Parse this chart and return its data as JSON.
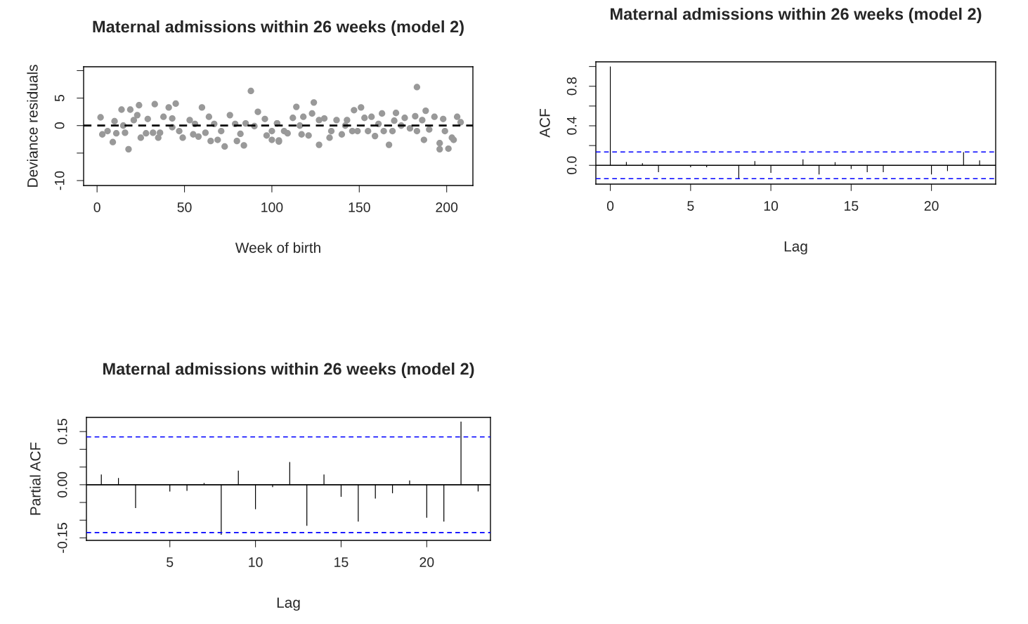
{
  "chart_data": [
    {
      "type": "scatter",
      "title": "Maternal admissions within 26 weeks (model 2)",
      "xlabel": "Week of birth",
      "ylabel": "Deviance residuals",
      "xlim": [
        -7.7,
        215
      ],
      "ylim": [
        -10.9,
        10.7
      ],
      "xticks": [
        0,
        50,
        100,
        150,
        200
      ],
      "yticks": [
        {
          "value": -10,
          "label": "-10"
        },
        {
          "value": -5,
          "label": null
        },
        0,
        5,
        {
          "value": 10,
          "label": null
        }
      ],
      "grid": false,
      "marker": "circle",
      "series": [
        {
          "color": "#999999",
          "x": [
            2,
            3,
            6,
            9,
            10,
            11,
            14,
            15,
            16,
            18,
            19,
            21,
            23,
            24,
            25,
            28,
            29,
            32,
            33,
            35,
            36,
            38,
            41,
            43,
            43,
            45,
            47,
            49,
            53,
            55,
            56,
            58,
            60,
            62,
            64,
            65,
            67,
            69,
            71,
            73,
            76,
            79,
            80,
            82,
            84,
            85,
            88,
            90,
            92,
            96,
            97,
            100,
            100,
            103,
            104,
            103,
            104,
            107,
            109,
            112,
            114,
            116,
            117,
            118,
            121,
            123,
            124,
            127,
            127,
            130,
            133,
            134,
            137,
            140,
            142,
            143,
            146,
            147,
            149,
            151,
            153,
            155,
            157,
            159,
            161,
            163,
            164,
            167,
            169,
            170,
            171,
            174,
            176,
            179,
            182,
            183,
            183,
            186,
            187,
            188,
            190,
            193,
            196,
            196,
            198,
            199,
            201,
            203,
            204,
            206,
            208
          ],
          "values": [
            1.5,
            -1.6,
            -1.0,
            -3.0,
            0.8,
            -1.4,
            2.9,
            0.0,
            -1.3,
            -4.3,
            2.9,
            1.0,
            1.9,
            3.7,
            -2.2,
            -1.4,
            1.2,
            -1.3,
            3.9,
            -2.2,
            -1.3,
            1.6,
            3.3,
            1.3,
            -0.3,
            4.0,
            -1.0,
            -2.2,
            1.0,
            -1.6,
            0.3,
            -2.0,
            3.3,
            -1.3,
            1.6,
            -2.8,
            0.3,
            -2.6,
            -1.0,
            -3.8,
            1.9,
            0.3,
            -2.8,
            -1.5,
            -3.6,
            0.4,
            6.3,
            -0.1,
            2.5,
            1.2,
            -1.8,
            -1.0,
            -2.6,
            0.4,
            -2.9,
            0.4,
            -2.7,
            -1.0,
            -1.4,
            1.4,
            3.4,
            0.0,
            -1.6,
            1.6,
            -1.8,
            2.2,
            4.2,
            -3.5,
            1.0,
            1.3,
            -2.2,
            -1.0,
            1.0,
            -1.6,
            0.0,
            1.0,
            -1.0,
            2.8,
            -1.0,
            3.3,
            1.4,
            -1.0,
            1.6,
            -1.9,
            0.3,
            2.2,
            -1.0,
            -3.5,
            -1.0,
            0.9,
            2.3,
            0.0,
            1.4,
            -0.5,
            1.7,
            -1.0,
            7.0,
            1.0,
            -2.6,
            2.7,
            -0.7,
            1.6,
            -4.3,
            -3.2,
            1.2,
            -1.0,
            -4.2,
            -2.2,
            -2.6,
            1.6,
            0.6
          ]
        }
      ],
      "ref_lines": [
        {
          "axis": "y",
          "value": 0,
          "color": "#000000",
          "line_style": "dashed"
        }
      ]
    },
    {
      "type": "bar",
      "title": "Maternal admissions within 26 weeks (model 2)",
      "xlabel": "Lag",
      "ylabel": "ACF",
      "xlim": [
        -0.9,
        24.0
      ],
      "ylim": [
        -0.19,
        1.047
      ],
      "xticks": [
        0,
        5,
        10,
        15,
        20
      ],
      "yticks": [
        {
          "value": 0,
          "label": "0.0"
        },
        {
          "value": 0.2,
          "label": null
        },
        {
          "value": 0.4,
          "label": "0.4"
        },
        {
          "value": 0.6,
          "label": null
        },
        {
          "value": 0.8,
          "label": "0.8"
        },
        {
          "value": 1.0,
          "label": null
        }
      ],
      "grid": false,
      "series": [
        {
          "color": "#000000",
          "x": [
            0,
            1,
            2,
            3,
            4,
            5,
            6,
            7,
            8,
            9,
            10,
            11,
            12,
            13,
            14,
            15,
            16,
            17,
            18,
            19,
            20,
            21,
            22,
            23
          ],
          "values": [
            1.0,
            0.034,
            0.021,
            -0.069,
            -0.005,
            -0.02,
            -0.02,
            0.0,
            -0.138,
            0.042,
            -0.077,
            null,
            0.061,
            -0.093,
            0.032,
            -0.037,
            -0.069,
            -0.069,
            0.0,
            null,
            -0.093,
            -0.058,
            0.133,
            0.05
          ]
        }
      ],
      "ref_lines": [
        {
          "axis": "y",
          "value": 0,
          "color": "#000000",
          "line_style": "solid"
        },
        {
          "axis": "y",
          "value": 0.135,
          "color": "#0000ff",
          "line_style": "dashed"
        },
        {
          "axis": "y",
          "value": -0.135,
          "color": "#0000ff",
          "line_style": "dashed"
        }
      ]
    },
    {
      "type": "bar",
      "title": "Maternal admissions within 26 weeks (model 2)",
      "xlabel": "Lag",
      "ylabel": "Partial ACF",
      "xlim": [
        0.13,
        23.72
      ],
      "ylim": [
        -0.157,
        0.19
      ],
      "xticks": [
        5,
        10,
        15,
        20
      ],
      "yticks": [
        {
          "value": -0.15,
          "label": "-0.15"
        },
        {
          "value": -0.1,
          "label": null
        },
        {
          "value": -0.05,
          "label": null
        },
        {
          "value": 0,
          "label": "0.00"
        },
        {
          "value": 0.05,
          "label": null
        },
        {
          "value": 0.1,
          "label": null
        },
        {
          "value": 0.15,
          "label": "0.15"
        }
      ],
      "grid": false,
      "series": [
        {
          "color": "#000000",
          "x": [
            1,
            2,
            3,
            4,
            5,
            6,
            7,
            8,
            9,
            10,
            11,
            12,
            13,
            14,
            15,
            16,
            17,
            18,
            19,
            20,
            21,
            22,
            23
          ],
          "values": [
            0.029,
            0.019,
            -0.066,
            null,
            -0.019,
            -0.017,
            0.005,
            -0.141,
            0.04,
            -0.069,
            -0.007,
            0.064,
            -0.116,
            0.029,
            -0.034,
            -0.104,
            -0.039,
            -0.024,
            0.012,
            -0.093,
            -0.104,
            0.178,
            -0.019
          ]
        }
      ],
      "ref_lines": [
        {
          "axis": "y",
          "value": 0,
          "color": "#000000",
          "line_style": "solid"
        },
        {
          "axis": "y",
          "value": 0.135,
          "color": "#0000ff",
          "line_style": "dashed"
        },
        {
          "axis": "y",
          "value": -0.135,
          "color": "#0000ff",
          "line_style": "dashed"
        }
      ]
    }
  ]
}
